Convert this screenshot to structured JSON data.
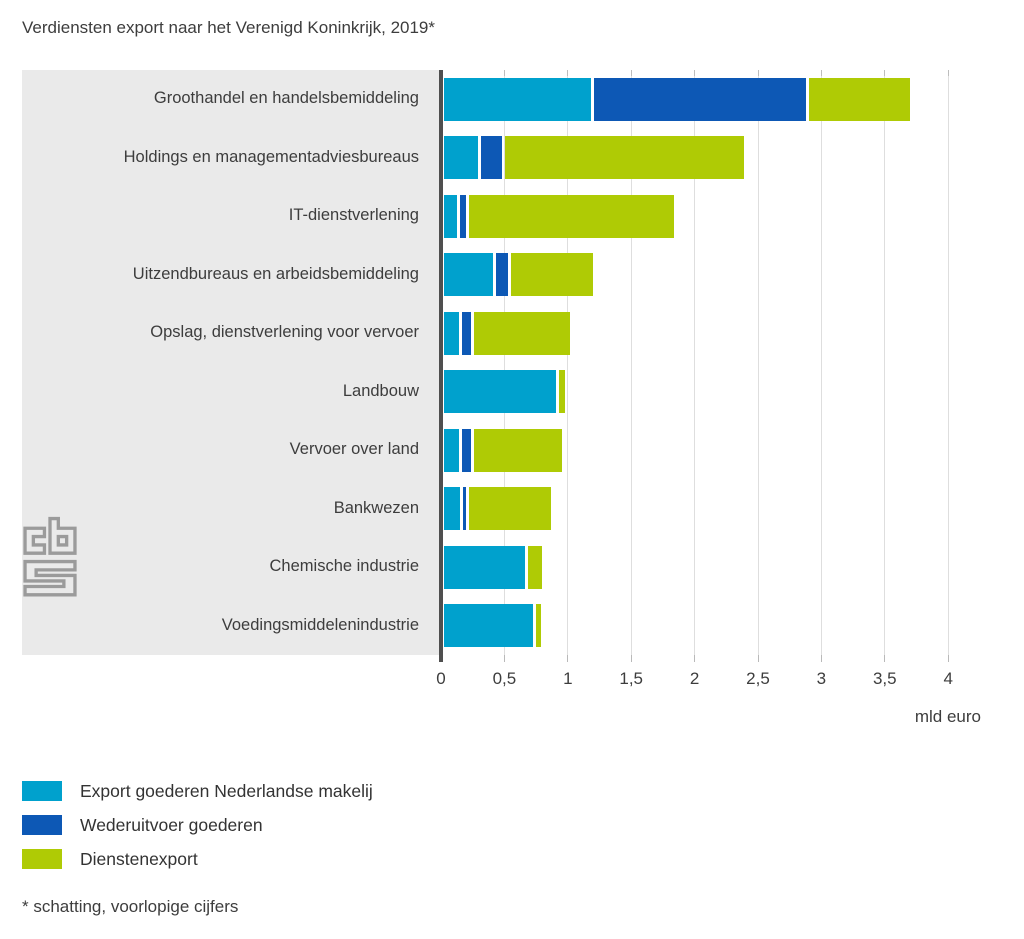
{
  "chart_data": {
    "type": "bar",
    "orientation": "horizontal",
    "stacked": true,
    "title": "Verdiensten export naar het Verenigd Koninkrijk, 2019*",
    "categories": [
      "Groothandel en handelsbemiddeling",
      "Holdings en managementadviesbureaus",
      "IT-dienstverlening",
      "Uitzendbureaus en arbeidsbemiddeling",
      "Opslag, dienstverlening voor vervoer",
      "Landbouw",
      "Vervoer over land",
      "Bankwezen",
      "Chemische industrie",
      "Voedingsmiddelenindustrie"
    ],
    "series": [
      {
        "name": "Export goederen Nederlandse makelij",
        "color": "#00a1cd",
        "values": [
          1.16,
          0.27,
          0.1,
          0.39,
          0.12,
          0.88,
          0.12,
          0.13,
          0.64,
          0.7
        ]
      },
      {
        "name": "Wederuitvoer goederen",
        "color": "#0d58b5",
        "values": [
          1.67,
          0.16,
          0.05,
          0.09,
          0.07,
          0,
          0.07,
          0.02,
          0,
          0
        ]
      },
      {
        "name": "Dienstenexport",
        "color": "#afcb05",
        "values": [
          0.8,
          1.89,
          1.62,
          0.65,
          0.76,
          0.05,
          0.69,
          0.65,
          0.11,
          0.04
        ]
      }
    ],
    "x_ticks": [
      "0",
      "0,5",
      "1",
      "1,5",
      "2",
      "2,5",
      "3",
      "3,5",
      "4"
    ],
    "xlim": [
      0,
      4.45
    ],
    "xlabel_unit": "mld euro",
    "grid": true,
    "legend_position": "bottom-left",
    "footnote": "* schatting, voorlopige cijfers",
    "source_logo": "cbs-logo"
  },
  "style": {
    "panel_background": "#eaeaea",
    "gridline_color": "#dedede",
    "axis_color": "#4f4f4f",
    "text_color": "#3d3d3d",
    "logo_color": "#9b9b9b"
  }
}
